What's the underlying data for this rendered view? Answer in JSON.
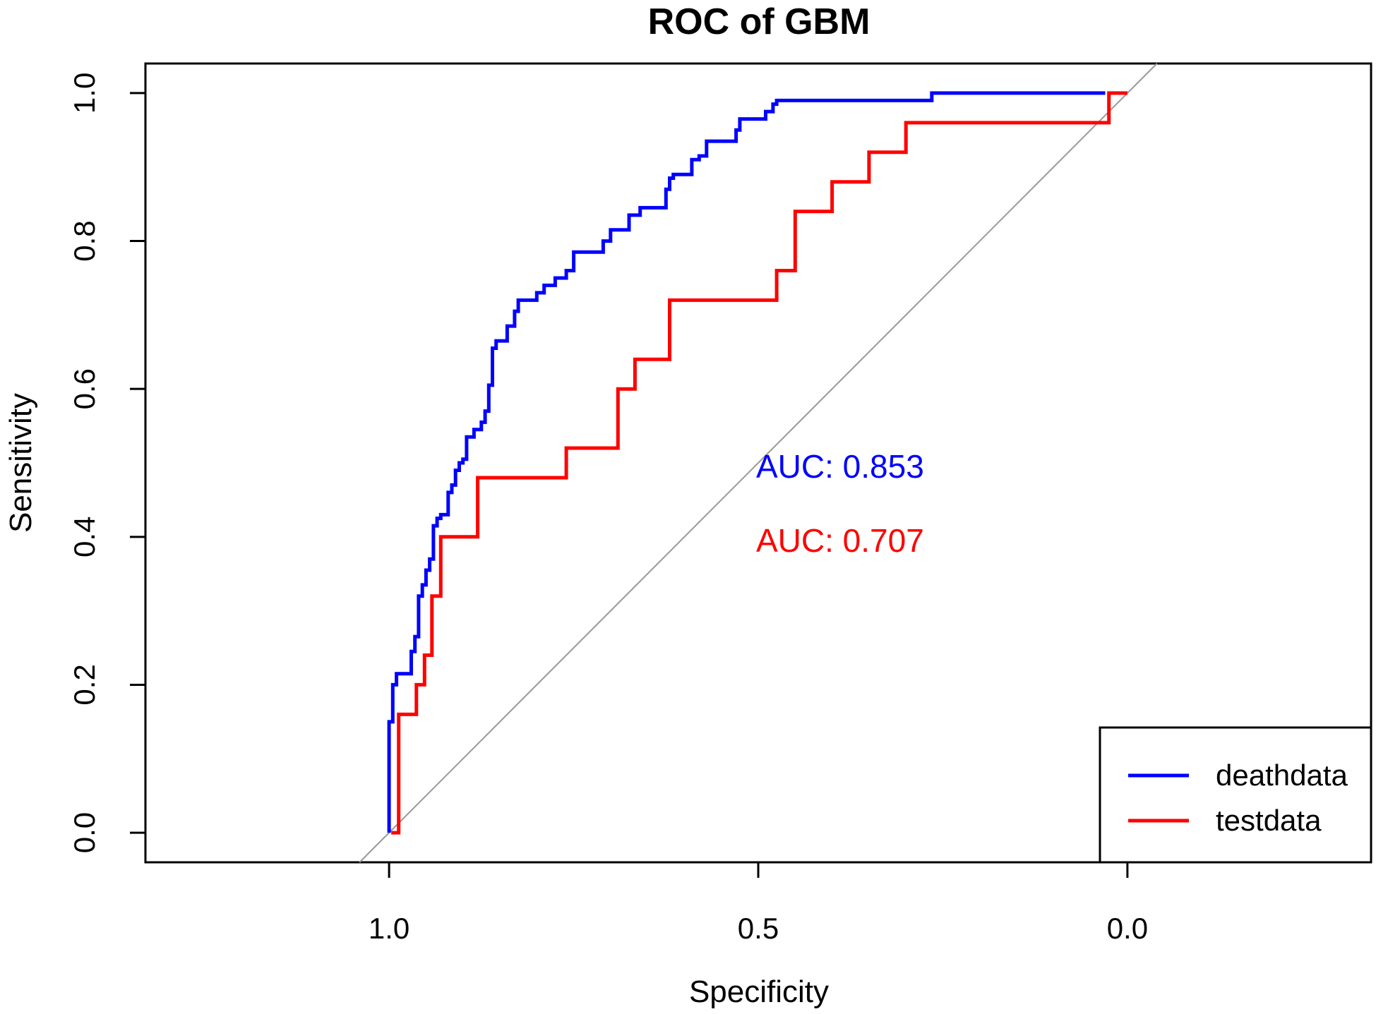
{
  "chart_data": {
    "type": "line",
    "title": "ROC of GBM",
    "xlabel": "Specificity",
    "ylabel": "Sensitivity",
    "xlim": [
      1.33,
      -0.33
    ],
    "ylim": [
      -0.04,
      1.04
    ],
    "x_reversed": true,
    "xticks": [
      1.0,
      0.5,
      0.0
    ],
    "xtick_labels": [
      "1.0",
      "0.5",
      "0.0"
    ],
    "yticks": [
      0.0,
      0.2,
      0.4,
      0.6,
      0.8,
      1.0
    ],
    "ytick_labels": [
      "0.0",
      "0.2",
      "0.4",
      "0.6",
      "0.8",
      "1.0"
    ],
    "grid": false,
    "reference_line": {
      "from": [
        1,
        0
      ],
      "to": [
        0,
        1
      ],
      "color": "#999999"
    },
    "legend_position": "bottom-right",
    "series": [
      {
        "name": "deathdata",
        "color": "#0000ff",
        "points": [
          [
            1.0,
            0.0
          ],
          [
            1.0,
            0.15
          ],
          [
            0.995,
            0.15
          ],
          [
            0.995,
            0.2
          ],
          [
            0.99,
            0.2
          ],
          [
            0.99,
            0.215
          ],
          [
            0.97,
            0.215
          ],
          [
            0.97,
            0.245
          ],
          [
            0.965,
            0.245
          ],
          [
            0.965,
            0.265
          ],
          [
            0.96,
            0.265
          ],
          [
            0.96,
            0.32
          ],
          [
            0.955,
            0.32
          ],
          [
            0.955,
            0.335
          ],
          [
            0.95,
            0.335
          ],
          [
            0.95,
            0.355
          ],
          [
            0.945,
            0.355
          ],
          [
            0.945,
            0.37
          ],
          [
            0.94,
            0.37
          ],
          [
            0.94,
            0.415
          ],
          [
            0.935,
            0.415
          ],
          [
            0.935,
            0.425
          ],
          [
            0.93,
            0.425
          ],
          [
            0.93,
            0.43
          ],
          [
            0.92,
            0.43
          ],
          [
            0.92,
            0.46
          ],
          [
            0.915,
            0.46
          ],
          [
            0.915,
            0.47
          ],
          [
            0.91,
            0.47
          ],
          [
            0.91,
            0.49
          ],
          [
            0.905,
            0.49
          ],
          [
            0.905,
            0.5
          ],
          [
            0.9,
            0.5
          ],
          [
            0.9,
            0.505
          ],
          [
            0.895,
            0.505
          ],
          [
            0.895,
            0.535
          ],
          [
            0.885,
            0.535
          ],
          [
            0.885,
            0.545
          ],
          [
            0.875,
            0.545
          ],
          [
            0.875,
            0.555
          ],
          [
            0.87,
            0.555
          ],
          [
            0.87,
            0.57
          ],
          [
            0.865,
            0.57
          ],
          [
            0.865,
            0.605
          ],
          [
            0.86,
            0.605
          ],
          [
            0.86,
            0.655
          ],
          [
            0.855,
            0.655
          ],
          [
            0.855,
            0.665
          ],
          [
            0.84,
            0.665
          ],
          [
            0.84,
            0.685
          ],
          [
            0.83,
            0.685
          ],
          [
            0.83,
            0.705
          ],
          [
            0.825,
            0.705
          ],
          [
            0.825,
            0.72
          ],
          [
            0.8,
            0.72
          ],
          [
            0.8,
            0.73
          ],
          [
            0.79,
            0.73
          ],
          [
            0.79,
            0.74
          ],
          [
            0.775,
            0.74
          ],
          [
            0.775,
            0.75
          ],
          [
            0.76,
            0.75
          ],
          [
            0.76,
            0.76
          ],
          [
            0.75,
            0.76
          ],
          [
            0.75,
            0.785
          ],
          [
            0.71,
            0.785
          ],
          [
            0.71,
            0.8
          ],
          [
            0.7,
            0.8
          ],
          [
            0.7,
            0.815
          ],
          [
            0.675,
            0.815
          ],
          [
            0.675,
            0.835
          ],
          [
            0.66,
            0.835
          ],
          [
            0.66,
            0.845
          ],
          [
            0.625,
            0.845
          ],
          [
            0.625,
            0.87
          ],
          [
            0.62,
            0.87
          ],
          [
            0.62,
            0.885
          ],
          [
            0.615,
            0.885
          ],
          [
            0.615,
            0.89
          ],
          [
            0.59,
            0.89
          ],
          [
            0.59,
            0.91
          ],
          [
            0.58,
            0.91
          ],
          [
            0.58,
            0.915
          ],
          [
            0.57,
            0.915
          ],
          [
            0.57,
            0.935
          ],
          [
            0.53,
            0.935
          ],
          [
            0.53,
            0.95
          ],
          [
            0.525,
            0.95
          ],
          [
            0.525,
            0.965
          ],
          [
            0.49,
            0.965
          ],
          [
            0.49,
            0.975
          ],
          [
            0.48,
            0.975
          ],
          [
            0.48,
            0.985
          ],
          [
            0.475,
            0.985
          ],
          [
            0.475,
            0.99
          ],
          [
            0.265,
            0.99
          ],
          [
            0.265,
            1.0
          ],
          [
            0.03,
            1.0
          ]
        ]
      },
      {
        "name": "testdata",
        "color": "#ff0000",
        "points": [
          [
            0.997,
            0.0
          ],
          [
            0.987,
            0.0
          ],
          [
            0.987,
            0.16
          ],
          [
            0.963,
            0.16
          ],
          [
            0.963,
            0.2
          ],
          [
            0.952,
            0.2
          ],
          [
            0.952,
            0.24
          ],
          [
            0.942,
            0.24
          ],
          [
            0.942,
            0.32
          ],
          [
            0.93,
            0.32
          ],
          [
            0.93,
            0.4
          ],
          [
            0.88,
            0.4
          ],
          [
            0.88,
            0.48
          ],
          [
            0.76,
            0.48
          ],
          [
            0.76,
            0.52
          ],
          [
            0.69,
            0.52
          ],
          [
            0.69,
            0.6
          ],
          [
            0.667,
            0.6
          ],
          [
            0.667,
            0.64
          ],
          [
            0.62,
            0.64
          ],
          [
            0.62,
            0.72
          ],
          [
            0.475,
            0.72
          ],
          [
            0.475,
            0.76
          ],
          [
            0.45,
            0.76
          ],
          [
            0.45,
            0.84
          ],
          [
            0.4,
            0.84
          ],
          [
            0.4,
            0.88
          ],
          [
            0.35,
            0.88
          ],
          [
            0.35,
            0.92
          ],
          [
            0.3,
            0.92
          ],
          [
            0.3,
            0.96
          ],
          [
            0.025,
            0.96
          ],
          [
            0.025,
            1.0
          ],
          [
            0.0,
            1.0
          ]
        ]
      }
    ],
    "annotations": [
      {
        "text": "AUC: 0.853",
        "x": 0.5,
        "y": 0.48,
        "color": "#0000ff"
      },
      {
        "text": "AUC: 0.707",
        "x": 0.5,
        "y": 0.38,
        "color": "#ff0000"
      }
    ]
  }
}
